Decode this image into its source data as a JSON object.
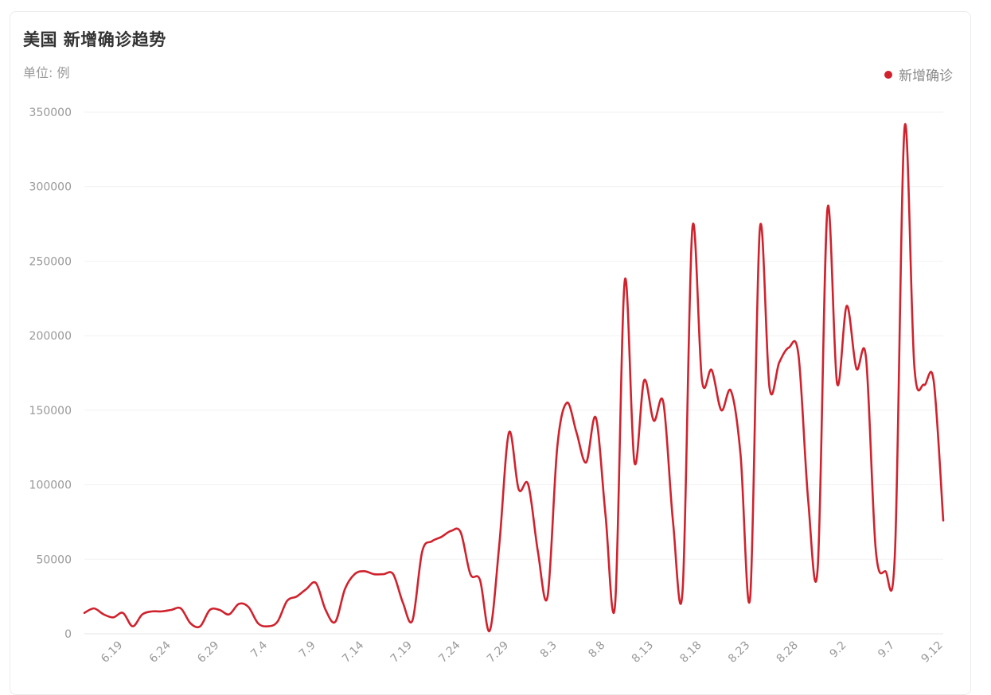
{
  "header": {
    "title": "美国 新增确诊趋势",
    "unit_label": "单位: 例"
  },
  "legend": {
    "label": "新增确诊",
    "color": "#d0222d"
  },
  "chart_data": {
    "type": "line",
    "title": "美国 新增确诊趋势",
    "ylabel": "单位: 例",
    "xlabel": "",
    "ylim": [
      0,
      350000
    ],
    "yticks": [
      0,
      50000,
      100000,
      150000,
      200000,
      250000,
      300000,
      350000
    ],
    "grid": true,
    "legend_position": "top-right",
    "x_tick_labels": [
      "6.19",
      "6.24",
      "6.29",
      "7.4",
      "7.9",
      "7.14",
      "7.19",
      "7.24",
      "7.29",
      "8.3",
      "8.8",
      "8.13",
      "8.18",
      "8.23",
      "8.28",
      "9.2",
      "9.7",
      "9.12"
    ],
    "x": [
      "6.15",
      "6.16",
      "6.17",
      "6.18",
      "6.19",
      "6.20",
      "6.21",
      "6.22",
      "6.23",
      "6.24",
      "6.25",
      "6.26",
      "6.27",
      "6.28",
      "6.29",
      "6.30",
      "7.1",
      "7.2",
      "7.3",
      "7.4",
      "7.5",
      "7.6",
      "7.7",
      "7.8",
      "7.9",
      "7.10",
      "7.11",
      "7.12",
      "7.13",
      "7.14",
      "7.15",
      "7.16",
      "7.17",
      "7.18",
      "7.19",
      "7.20",
      "7.21",
      "7.22",
      "7.23",
      "7.24",
      "7.25",
      "7.26",
      "7.27",
      "7.28",
      "7.29",
      "7.30",
      "7.31",
      "8.1",
      "8.2",
      "8.3",
      "8.4",
      "8.5",
      "8.6",
      "8.7",
      "8.8",
      "8.9",
      "8.10",
      "8.11",
      "8.12",
      "8.13",
      "8.14",
      "8.15",
      "8.16",
      "8.17",
      "8.18",
      "8.19",
      "8.20",
      "8.21",
      "8.22",
      "8.23",
      "8.24",
      "8.25",
      "8.26",
      "8.27",
      "8.28",
      "8.29",
      "8.30",
      "8.31",
      "9.1",
      "9.2",
      "9.3",
      "9.4",
      "9.5",
      "9.6",
      "9.7",
      "9.8",
      "9.9",
      "9.10",
      "9.11",
      "9.12"
    ],
    "series": [
      {
        "name": "新增确诊",
        "color": "#d0222d",
        "values": [
          14000,
          17000,
          13000,
          11000,
          14000,
          5000,
          13000,
          15000,
          15000,
          16000,
          17000,
          7000,
          5000,
          16000,
          16000,
          13000,
          20000,
          18000,
          7000,
          5000,
          8000,
          22000,
          25000,
          30000,
          34000,
          16000,
          8000,
          30000,
          40000,
          42000,
          40000,
          40000,
          40000,
          21000,
          9000,
          55000,
          62000,
          65000,
          69000,
          68000,
          40000,
          36000,
          2000,
          60000,
          135000,
          97000,
          100000,
          55000,
          25000,
          125000,
          155000,
          135000,
          115000,
          145000,
          80000,
          20000,
          237000,
          115000,
          170000,
          143000,
          155000,
          75000,
          30000,
          272000,
          170000,
          177000,
          150000,
          163000,
          120000,
          25000,
          272000,
          165000,
          182000,
          192000,
          187000,
          90000,
          45000,
          285000,
          168000,
          220000,
          178000,
          185000,
          57000,
          42000,
          55000,
          340000,
          180000,
          167000,
          170000,
          76000
        ]
      }
    ]
  }
}
